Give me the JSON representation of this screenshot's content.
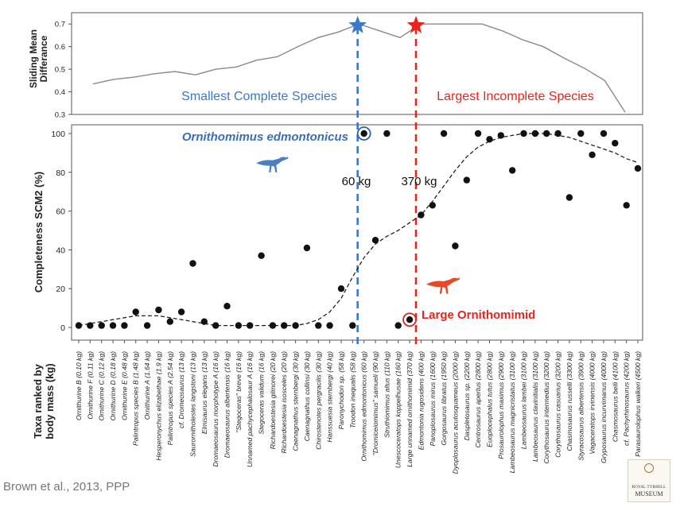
{
  "top_panel": {
    "ylabel": "Sliding Mean\nDifferance",
    "yticks": [
      "0.7",
      "0.6",
      "0.5",
      "0.4",
      "0.3"
    ],
    "ylim": [
      0.3,
      0.75
    ],
    "blue_label": "Smallest Complete Species",
    "red_label": "Largest Incomplete Species",
    "blue_color": "#3a78c8",
    "red_color": "#e8241c"
  },
  "main_panel": {
    "ylabel": "Completeness SCM2 (%)",
    "yticks": [
      "100",
      "80",
      "60",
      "40",
      "20",
      "0"
    ],
    "ylim": [
      0,
      100
    ],
    "xlabel": "Taxa ranked by\nbody mass (kg)",
    "annot_blue_name": "Ornithomimus edmontonicus",
    "annot_60": "60 kg",
    "annot_370": "370 kg",
    "annot_red_name": "Large Ornithomimid"
  },
  "chart_data": [
    {
      "type": "line",
      "x": [
        0,
        3,
        6,
        9,
        12,
        15,
        18,
        21,
        24,
        27,
        30,
        33,
        36,
        39,
        42,
        45,
        48,
        51,
        54,
        57,
        60,
        63,
        66,
        69,
        72,
        75,
        78
      ],
      "values": [
        0.435,
        0.455,
        0.465,
        0.48,
        0.49,
        0.475,
        0.5,
        0.51,
        0.54,
        0.555,
        0.6,
        0.64,
        0.665,
        0.7,
        0.67,
        0.64,
        0.7,
        0.7,
        0.7,
        0.7,
        0.67,
        0.63,
        0.6,
        0.55,
        0.505,
        0.45,
        0.31
      ],
      "ylabel": "Sliding Mean\nDifferance",
      "ylim": [
        0.3,
        0.75
      ]
    },
    {
      "type": "scatter",
      "xlabel": "Taxa ranked by\nbody mass (kg)",
      "ylabel": "Completeness SCM2 (%)",
      "ylim": [
        0,
        100
      ],
      "categories": [
        "Ornithurine B (0.10 kg)",
        "Ornithurine F (0.11 kg)",
        "Ornithurine C (0.12 kg)",
        "Ornithurine D (0.18 kg)",
        "Ornithurine E (0.48 kg)",
        "Palintropus species B (1.48 kg)",
        "Ornithurine A (1.64 kg)",
        "Hesperonychus elizabethae (1.9 kg)",
        "Palintropus species A (2.54 kg)",
        "cf. Dromeosaurus (13 kg)",
        "Saurornitholestes langstoni (13 kg)",
        "Elmisaurus elegans (13 kg)",
        "Dromaeosaurus morphotype A (16 kg)",
        "Dromaeosaurus albertensis (16 kg)",
        "\"Stegoceras\" breve (16 kg)",
        "Unnamed pachycephalosaur A (16 kg)",
        "Stegoceras validum (16 kg)",
        "Richardoestesia gilmorei (20 kg)",
        "Richardoestesia isosceles (20 kg)",
        "Caenagnathus sternbergi (30 kg)",
        "Caenagnathus collinsi (30 kg)",
        "Chirostenotes pergracilis (30 kg)",
        "Hanssuesia sternbergi (40 kg)",
        "Paronychodon sp. (58 kg)",
        "Troodon inequalis (58 kg)",
        "Ornithomimus edmontonicus (60 kg)",
        "\"Dromiceiomimus\" samueli (90 kg)",
        "Struthiomimus altus (110 kg)",
        "Unescoceratops koppelhusae (160 kg)",
        "Large unnamed ornithomimid (370 kg)",
        "Edmontonia rugosidens (400 kg)",
        "Panoplosaurus mirus (1600 kg)",
        "Gorgosaurus libratus (1950 kg)",
        "Dyoplosaurus acutosquameus (2000 kg)",
        "Daspletosaurus sp. (2200 kg)",
        "Centrosaurus apertus (2800 kg)",
        "Euoplocephalus tutus (2800 kg)",
        "Prosaurolophus maximus (2900 kg)",
        "Lambeosaurus magnicristatus (3100 kg)",
        "Lambeosaurus lambei (3100 kg)",
        "Lambeosaurus clavinitialis (3100 kg)",
        "Corythosaurus intermedius (3200 kg)",
        "Corythosaurus casuarius (3200 kg)",
        "Chasmosaurus russelli (3300 kg)",
        "Styracosaurus albertensis (3900 kg)",
        "Vagaceratops irvinensis (4000 kg)",
        "Gryposaurus incurvimanus (4000 kg)",
        "Chasmosaurus belli (4100 kg)",
        "cf. Pachyrhinosaurus (4200 kg)",
        "Parasaurolophus walkeri (4500 kg)"
      ],
      "values": [
        1,
        1,
        1,
        1,
        1,
        8,
        1,
        9,
        3,
        8,
        33,
        3,
        1,
        11,
        1,
        1,
        37,
        1,
        1,
        1,
        41,
        1,
        1,
        20,
        1,
        100,
        45,
        100,
        1,
        4,
        58,
        63,
        100,
        42,
        76,
        100,
        97,
        99,
        81,
        100,
        100,
        100,
        100,
        67,
        100,
        89,
        100,
        95,
        63,
        82
      ],
      "trend": {
        "name": "",
        "values": [
          1,
          2,
          3,
          4,
          5,
          6,
          6,
          6,
          5,
          4,
          3,
          2,
          1,
          1,
          1,
          1,
          1,
          1,
          1,
          1,
          2,
          4,
          8,
          15,
          26,
          36,
          43,
          47,
          50,
          54,
          58,
          65,
          73,
          81,
          88,
          93,
          96,
          98,
          99,
          100,
          100,
          100,
          99,
          98,
          96,
          94,
          92,
          90,
          87,
          85
        ]
      },
      "highlight_blue_index": 25,
      "highlight_red_index": 29
    }
  ],
  "credit": "Brown et al., 2013, PPP",
  "museum_logo": {
    "line1": "ROYAL TYRRELL",
    "line2": "MUSEUM"
  }
}
